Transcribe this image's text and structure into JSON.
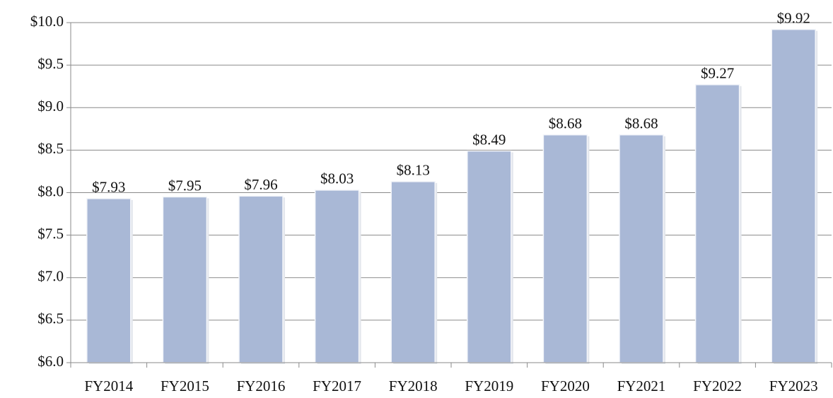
{
  "chart_data": {
    "type": "bar",
    "categories": [
      "FY2014",
      "FY2015",
      "FY2016",
      "FY2017",
      "FY2018",
      "FY2019",
      "FY2020",
      "FY2021",
      "FY2022",
      "FY2023"
    ],
    "values": [
      7.93,
      7.95,
      7.96,
      8.03,
      8.13,
      8.49,
      8.68,
      8.68,
      9.27,
      9.92
    ],
    "value_labels": [
      "$7.93",
      "$7.95",
      "$7.96",
      "$8.03",
      "$8.13",
      "$8.49",
      "$8.68",
      "$8.68",
      "$9.27",
      "$9.92"
    ],
    "color": "#a9b8d6",
    "ylim": [
      6.0,
      10.0
    ],
    "yticks": [
      {
        "value": 6.0,
        "label": "$6.0"
      },
      {
        "value": 6.5,
        "label": "$6.5"
      },
      {
        "value": 7.0,
        "label": "$7.0"
      },
      {
        "value": 7.5,
        "label": "$7.5"
      },
      {
        "value": 8.0,
        "label": "$8.0"
      },
      {
        "value": 8.5,
        "label": "$8.5"
      },
      {
        "value": 9.0,
        "label": "$9.0"
      },
      {
        "value": 9.5,
        "label": "$9.5"
      },
      {
        "value": 10.0,
        "label": "$10.0"
      }
    ],
    "grid": true
  }
}
